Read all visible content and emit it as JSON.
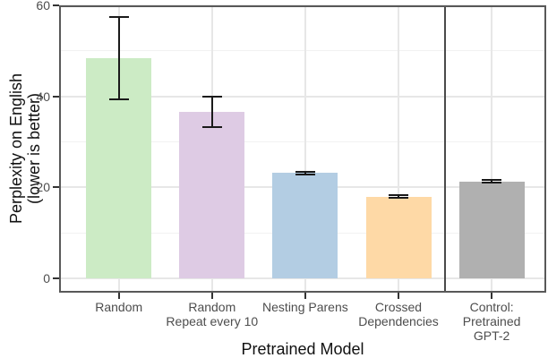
{
  "chart_data": {
    "type": "bar",
    "xlabel": "Pretrained Model",
    "ylabel": "Perplexity on English\n(lower is better)",
    "categories": [
      "Random",
      "Random\nRepeat every 10",
      "Nesting Parens",
      "Crossed\nDependencies",
      "Control:\nPretrained\nGPT-2"
    ],
    "values": [
      48.3,
      36.6,
      23.2,
      18.0,
      21.3
    ],
    "error_low": [
      39.3,
      33.3,
      22.9,
      17.8,
      21.0
    ],
    "error_high": [
      57.4,
      40.0,
      23.5,
      18.2,
      21.6
    ],
    "bar_colors": [
      "#ccebc5",
      "#decbe4",
      "#b3cde3",
      "#fed9a6",
      "#b0b0b0"
    ],
    "y_ticks": [
      0,
      20,
      40,
      60
    ],
    "y_minor_ticks": [
      10,
      30,
      50
    ],
    "ylim": [
      -3.2,
      60
    ],
    "vline_x": 3.5,
    "grid": true,
    "legend": "none"
  }
}
